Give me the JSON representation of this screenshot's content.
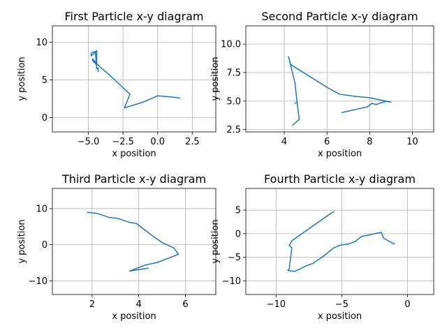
{
  "figure": {
    "background": "#ffffff",
    "line_color": "#1f77b4"
  },
  "chart_data": [
    {
      "type": "line",
      "title": "First Particle x-y diagram",
      "xlabel": "x position",
      "ylabel": "y position",
      "xlim": [
        -7.6,
        4.2
      ],
      "ylim": [
        -1.9,
        12.2
      ],
      "xticks": [
        -5,
        -2.5,
        0,
        2.5
      ],
      "xtick_labels": [
        "−5.0",
        "−2.5",
        "0.0",
        "2.5"
      ],
      "yticks": [
        0,
        5,
        10
      ],
      "ytick_labels": [
        "0",
        "5",
        "10"
      ],
      "grid": true,
      "series": [
        {
          "x": [
            -4.3,
            -4.3,
            -4.4,
            -4.5,
            -4.8,
            -4.8,
            -4.4,
            -4.4,
            -4.7,
            -4.7,
            -4.2,
            -3.5,
            -2.8,
            -2.0,
            -2.4,
            -1.5,
            -1.0,
            0.0,
            1.2,
            1.6
          ],
          "y": [
            6.1,
            6.6,
            6.5,
            8.8,
            8.6,
            8.2,
            8.9,
            7.0,
            7.6,
            7.8,
            6.8,
            5.7,
            4.5,
            3.1,
            1.3,
            1.8,
            2.1,
            2.9,
            2.7,
            2.6
          ]
        }
      ]
    },
    {
      "type": "line",
      "title": "Second Particle x-y diagram",
      "xlabel": "x position",
      "ylabel": "y position",
      "xlim": [
        2.2,
        11.0
      ],
      "ylim": [
        2.3,
        11.6
      ],
      "xticks": [
        4,
        6,
        8,
        10
      ],
      "xtick_labels": [
        "4",
        "6",
        "8",
        "10"
      ],
      "yticks": [
        2.5,
        5.0,
        7.5,
        10.0
      ],
      "ytick_labels": [
        "2.5",
        "5.0",
        "7.5",
        "10.0"
      ],
      "grid": true,
      "series": [
        {
          "x": [
            6.7,
            7.9,
            8.1,
            8.3,
            8.8,
            9.0,
            8.0,
            7.4,
            6.6,
            6.1,
            4.3,
            4.2,
            4.3,
            4.5,
            4.6,
            4.5,
            4.6,
            4.7,
            4.4
          ],
          "y": [
            4.0,
            4.5,
            4.8,
            4.7,
            5.0,
            4.9,
            5.3,
            5.4,
            5.6,
            6.1,
            8.2,
            8.9,
            8.1,
            6.6,
            4.9,
            4.8,
            4.9,
            3.4,
            2.9
          ]
        }
      ]
    },
    {
      "type": "line",
      "title": "Third Particle x-y diagram",
      "xlabel": "x position",
      "ylabel": "y position",
      "xlim": [
        0.3,
        7.3
      ],
      "ylim": [
        -13.8,
        15.6
      ],
      "xticks": [
        2,
        4,
        6
      ],
      "xtick_labels": [
        "2",
        "4",
        "6"
      ],
      "yticks": [
        -10,
        0,
        10
      ],
      "ytick_labels": [
        "−10",
        "0",
        "10"
      ],
      "grid": true,
      "series": [
        {
          "x": [
            1.8,
            2.2,
            2.5,
            2.7,
            3.1,
            3.6,
            3.9,
            4.6,
            5.0,
            5.5,
            5.7,
            5.6,
            4.8,
            4.3,
            3.6,
            4.4
          ],
          "y": [
            9.0,
            8.7,
            8.1,
            7.6,
            7.3,
            6.2,
            5.9,
            2.4,
            0.6,
            -0.9,
            -2.6,
            -2.9,
            -4.9,
            -5.6,
            -7.3,
            -6.5
          ]
        }
      ]
    },
    {
      "type": "line",
      "title": "Fourth Particle x-y diagram",
      "xlabel": "x position",
      "ylabel": "y position",
      "xlim": [
        -12.3,
        2.0
      ],
      "ylim": [
        -12.9,
        9.6
      ],
      "xticks": [
        -10,
        -5,
        0
      ],
      "xtick_labels": [
        "−10",
        "−5",
        "0"
      ],
      "yticks": [
        -10,
        -5,
        0,
        5
      ],
      "ytick_labels": [
        "−10",
        "−5",
        "0",
        "5"
      ],
      "grid": true,
      "series": [
        {
          "x": [
            -5.6,
            -6.0,
            -6.5,
            -8.8,
            -9.0,
            -8.8,
            -9.0,
            -9.1,
            -8.6,
            -8.2,
            -7.7,
            -7.2,
            -6.5,
            -5.6,
            -5.1,
            -4.5,
            -4.0,
            -3.5,
            -2.0,
            -1.8,
            -1.0
          ],
          "y": [
            4.7,
            4.0,
            3.0,
            -1.5,
            -2.5,
            -3.0,
            -7.5,
            -7.8,
            -8.0,
            -7.5,
            -6.8,
            -6.3,
            -5.0,
            -3.0,
            -2.4,
            -2.2,
            -1.7,
            -0.6,
            0.3,
            -1.0,
            -2.2
          ]
        }
      ]
    }
  ]
}
